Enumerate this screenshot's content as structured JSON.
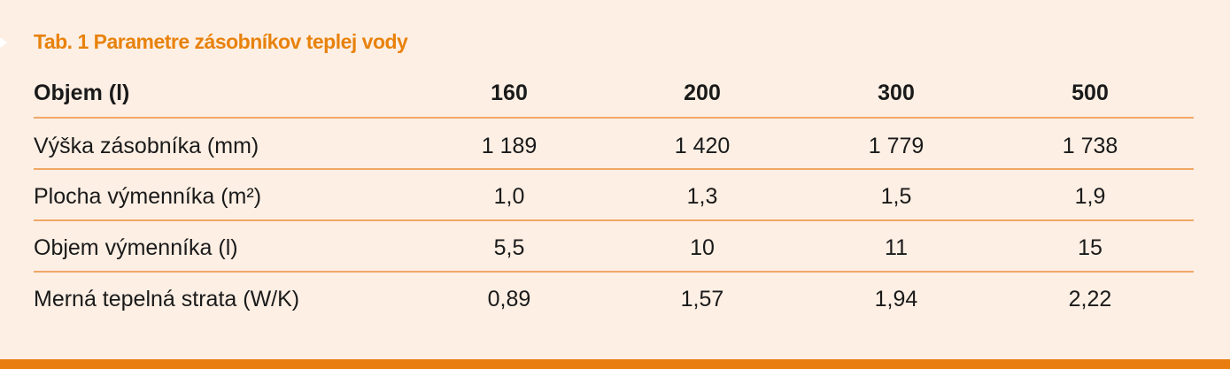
{
  "title": "Tab. 1 Parametre zásobníkov teplej vody",
  "table": {
    "header": [
      "Objem (l)",
      "160",
      "200",
      "300",
      "500"
    ],
    "rows": [
      [
        "Výška zásobníka (mm)",
        "1 189",
        "1 420",
        "1 779",
        "1 738"
      ],
      [
        "Plocha výmenníka (m²)",
        "1,0",
        "1,3",
        "1,5",
        "1,9"
      ],
      [
        "Objem výmenníka (l)",
        "5,5",
        "10",
        "11",
        "15"
      ],
      [
        "Merná tepelná strata (W/K)",
        "0,89",
        "1,57",
        "1,94",
        "2,22"
      ]
    ]
  }
}
